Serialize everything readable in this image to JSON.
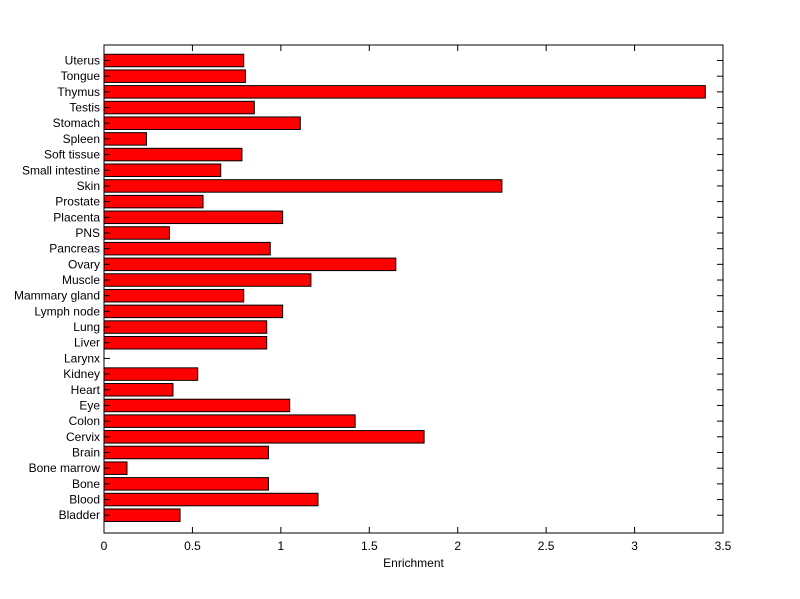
{
  "chart_data": {
    "type": "bar",
    "orientation": "horizontal",
    "xlabel": "Enrichment",
    "xlim": [
      0,
      3.5
    ],
    "xticks": [
      0,
      0.5,
      1,
      1.5,
      2,
      2.5,
      3,
      3.5
    ],
    "xtick_labels": [
      "0",
      "0.5",
      "1",
      "1.5",
      "2",
      "2.5",
      "3",
      "3.5"
    ],
    "categories": [
      "Uterus",
      "Tongue",
      "Thymus",
      "Testis",
      "Stomach",
      "Spleen",
      "Soft tissue",
      "Small intestine",
      "Skin",
      "Prostate",
      "Placenta",
      "PNS",
      "Pancreas",
      "Ovary",
      "Muscle",
      "Mammary gland",
      "Lymph node",
      "Lung",
      "Liver",
      "Larynx",
      "Kidney",
      "Heart",
      "Eye",
      "Colon",
      "Cervix",
      "Brain",
      "Bone marrow",
      "Bone",
      "Blood",
      "Bladder"
    ],
    "values": [
      0.79,
      0.8,
      3.4,
      0.85,
      1.11,
      0.24,
      0.78,
      0.66,
      2.25,
      0.56,
      1.01,
      0.37,
      0.94,
      1.65,
      1.17,
      0.79,
      1.01,
      0.92,
      0.92,
      0.0,
      0.53,
      0.39,
      1.05,
      1.42,
      1.81,
      0.93,
      0.13,
      0.93,
      1.21,
      0.43
    ],
    "bar_color": "#ff0000",
    "edge_color": "#000000",
    "grid": false
  }
}
